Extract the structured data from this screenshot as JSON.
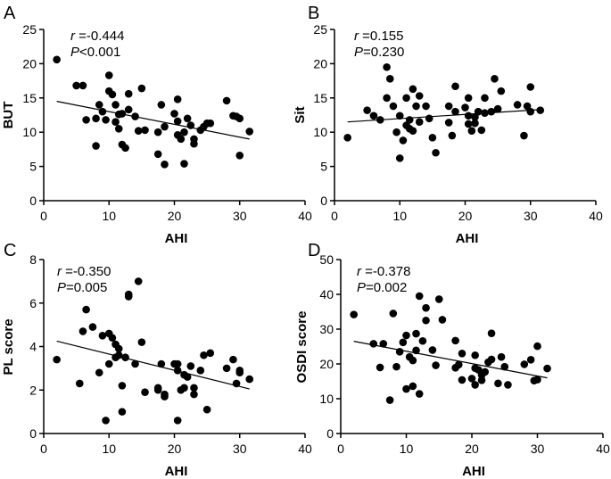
{
  "chart_data": [
    {
      "type": "scatter",
      "panel_label": "A",
      "xlabel": "AHI",
      "ylabel": "BUT",
      "xlim": [
        0,
        40
      ],
      "ylim": [
        0,
        25
      ],
      "xticks": [
        0,
        10,
        20,
        30,
        40
      ],
      "yticks": [
        0,
        5,
        10,
        15,
        20,
        25
      ],
      "stats": {
        "r_symbol": "r",
        "r_text": "=-0.444",
        "p_symbol": "P",
        "p_text": "<0.001"
      },
      "fit_line": {
        "x": [
          2,
          31.5
        ],
        "y": [
          14.5,
          9.0
        ]
      },
      "x": [
        2,
        5,
        6,
        6.5,
        8,
        8,
        8.5,
        9,
        9.5,
        10,
        10,
        10.5,
        11,
        11,
        11.5,
        11.5,
        12,
        12,
        12.5,
        13,
        13,
        14,
        14.5,
        15,
        15.5,
        17.5,
        17.5,
        18,
        18.5,
        18.5,
        20,
        20.5,
        20.5,
        20.5,
        21,
        21.5,
        21.5,
        22,
        22.5,
        23,
        23,
        24,
        24.5,
        25,
        25.5,
        28,
        29,
        29.5,
        30,
        30,
        31.5
      ],
      "y": [
        20.6,
        16.8,
        16.8,
        11.8,
        8.0,
        12.0,
        14.0,
        13.0,
        11.8,
        18.3,
        16.0,
        15.5,
        14.0,
        11.5,
        10.5,
        12.6,
        8.2,
        12.7,
        7.7,
        13.3,
        15.6,
        12.3,
        10.2,
        16.4,
        10.3,
        10.0,
        6.8,
        14.0,
        10.8,
        5.3,
        12.7,
        11.6,
        9.6,
        14.8,
        9.0,
        5.4,
        10.0,
        12.0,
        11.0,
        8.3,
        9.0,
        10.3,
        10.8,
        11.3,
        11.3,
        14.6,
        12.4,
        12.3,
        6.6,
        12.0,
        10.1
      ]
    },
    {
      "type": "scatter",
      "panel_label": "B",
      "xlabel": "AHI",
      "ylabel": "Sit",
      "xlim": [
        0,
        40
      ],
      "ylim": [
        0,
        25
      ],
      "xticks": [
        0,
        10,
        20,
        30,
        40
      ],
      "yticks": [
        0,
        5,
        10,
        15,
        20,
        25
      ],
      "stats": {
        "r_symbol": "r",
        "r_text": "=0.155",
        "p_symbol": "P",
        "p_text": "=0.230"
      },
      "fit_line": {
        "x": [
          2,
          31.5
        ],
        "y": [
          11.5,
          13.3
        ]
      },
      "x": [
        2,
        5,
        6,
        7,
        8,
        8,
        8.5,
        9,
        9.5,
        10,
        10,
        10.5,
        11,
        11,
        11.5,
        11.5,
        12,
        12,
        12.5,
        13,
        13,
        14,
        14.5,
        15,
        15.5,
        17.5,
        17.5,
        18,
        18.5,
        18.5,
        20,
        20.5,
        20.5,
        20.5,
        21,
        21.5,
        21.5,
        22,
        22.5,
        23,
        23,
        24,
        24.5,
        25,
        25.5,
        28,
        29,
        29.5,
        30,
        30,
        31.5
      ],
      "y": [
        9.2,
        13.2,
        12.4,
        11.8,
        19.5,
        15.0,
        17.8,
        13.8,
        10.0,
        12.4,
        6.2,
        8.8,
        15.0,
        11.0,
        11.8,
        10.5,
        16.3,
        10.2,
        13.8,
        11.5,
        15.3,
        13.8,
        12.0,
        9.2,
        7.0,
        11.4,
        13.8,
        9.5,
        16.7,
        13.0,
        13.6,
        11.2,
        15.0,
        12.4,
        10.2,
        12.2,
        11.3,
        13.0,
        10.3,
        12.8,
        15.0,
        13.0,
        17.8,
        13.4,
        16.0,
        14.0,
        9.5,
        13.8,
        16.6,
        13.0,
        13.2
      ]
    },
    {
      "type": "scatter",
      "panel_label": "C",
      "xlabel": "AHI",
      "ylabel": "PL score",
      "xlim": [
        0,
        40
      ],
      "ylim": [
        0,
        8
      ],
      "xticks": [
        0,
        10,
        20,
        30,
        40
      ],
      "yticks": [
        0,
        2,
        4,
        6,
        8
      ],
      "stats": {
        "r_symbol": "r",
        "r_text": "=-0.350",
        "p_symbol": "P",
        "p_text": "=0.005"
      },
      "fit_line": {
        "x": [
          2,
          31.5
        ],
        "y": [
          4.25,
          2.05
        ]
      },
      "x": [
        2,
        5.5,
        6,
        6.5,
        7.5,
        8.5,
        9,
        9.5,
        10,
        10,
        10.5,
        11,
        11,
        11.5,
        11.5,
        12,
        12,
        12.5,
        13,
        13,
        14,
        14.5,
        15,
        15.5,
        17.5,
        17.5,
        18,
        18.5,
        18.5,
        20,
        20.5,
        20.5,
        20.5,
        21,
        21.5,
        21.5,
        22,
        22.5,
        23,
        23,
        24,
        24.5,
        25,
        25.5,
        28,
        29,
        29.5,
        30,
        30,
        31.5
      ],
      "y": [
        3.4,
        2.3,
        4.7,
        5.7,
        4.9,
        2.8,
        4.5,
        0.6,
        4.6,
        3.2,
        4.4,
        3.5,
        4.1,
        3.6,
        3.9,
        2.2,
        1.0,
        3.5,
        6.4,
        6.3,
        3.2,
        7.0,
        4.2,
        1.9,
        2.0,
        2.1,
        3.2,
        1.8,
        1.7,
        3.2,
        0.6,
        2.9,
        3.2,
        2.0,
        2.7,
        2.1,
        2.6,
        3.1,
        2.1,
        1.8,
        2.9,
        3.6,
        1.1,
        3.7,
        3.0,
        3.4,
        2.3,
        2.9,
        2.8,
        2.5
      ]
    },
    {
      "type": "scatter",
      "panel_label": "D",
      "xlabel": "AHI",
      "ylabel": "OSDI score",
      "xlim": [
        0,
        40
      ],
      "ylim": [
        0,
        50
      ],
      "xticks": [
        0,
        10,
        20,
        30,
        40
      ],
      "yticks": [
        0,
        10,
        20,
        30,
        40,
        50
      ],
      "stats": {
        "r_symbol": "r",
        "r_text": "=-0.378",
        "p_symbol": "P",
        "p_text": "=0.002"
      },
      "fit_line": {
        "x": [
          2,
          31.5
        ],
        "y": [
          26.5,
          16.0
        ]
      },
      "x": [
        2,
        5,
        6,
        6.5,
        7.5,
        8,
        8.5,
        9,
        9.5,
        10,
        10,
        10.5,
        11,
        11,
        11.5,
        11.5,
        12,
        12,
        12.5,
        13,
        13,
        14,
        14.5,
        15,
        15.5,
        17.5,
        17.5,
        18,
        18.5,
        18.5,
        20,
        20.5,
        20.5,
        20.5,
        21,
        21.5,
        21.5,
        22,
        22.5,
        23,
        23,
        24,
        24.5,
        25,
        25.5,
        28,
        29,
        29.5,
        30,
        30,
        31.5
      ],
      "y": [
        34.2,
        25.8,
        19.0,
        25.8,
        9.6,
        34.5,
        19.2,
        23.5,
        26.2,
        28.2,
        12.8,
        22.0,
        13.6,
        21.0,
        23.9,
        28.7,
        11.4,
        39.5,
        26.6,
        36.1,
        32.5,
        24.0,
        19.6,
        38.6,
        32.7,
        18.9,
        26.7,
        19.8,
        15.4,
        23.0,
        15.8,
        22.5,
        14.0,
        18.8,
        18.3,
        15.3,
        16.8,
        17.7,
        20.5,
        21.3,
        28.8,
        14.4,
        22.0,
        19.2,
        14.0,
        19.9,
        21.2,
        15.2,
        25.1,
        15.5,
        18.7
      ]
    }
  ]
}
